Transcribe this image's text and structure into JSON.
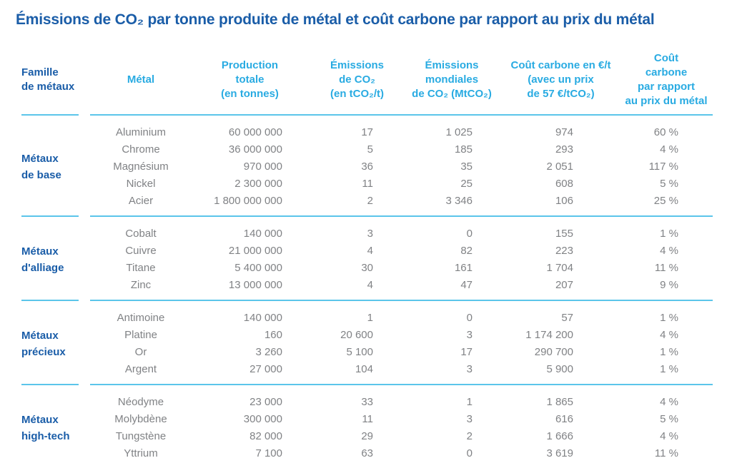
{
  "title": "Émissions de CO₂ par tonne produite de métal et coût carbone par rapport au prix du métal",
  "colors": {
    "title_blue": "#1A5DA8",
    "header_cyan": "#29ABE2",
    "separator_cyan": "#5BC5EA",
    "data_gray": "#808285"
  },
  "chart_data": {
    "type": "table",
    "title": "Émissions de CO₂ par tonne produite de métal et coût carbone par rapport au prix du métal",
    "columns": [
      "Famille\nde métaux",
      "Métal",
      "Production\ntotale\n(en tonnes)",
      "Émissions\nde CO₂\n(en tCO₂/t)",
      "Émissions\nmondiales\nde CO₂ (MtCO₂)",
      "Coût carbone en €/t\n(avec un prix\nde 57 €/tCO₂)",
      "Coût\ncarbone\npar rapport\nau prix du métal"
    ],
    "groups": [
      {
        "family": "Métaux\nde base",
        "rows": [
          [
            "Aluminium",
            "60 000 000",
            "17",
            "1 025",
            "974",
            "60 %"
          ],
          [
            "Chrome",
            "36 000 000",
            "5",
            "185",
            "293",
            "4 %"
          ],
          [
            "Magnésium",
            "970 000",
            "36",
            "35",
            "2 051",
            "117 %"
          ],
          [
            "Nickel",
            "2 300 000",
            "11",
            "25",
            "608",
            "5 %"
          ],
          [
            "Acier",
            "1 800 000 000",
            "2",
            "3 346",
            "106",
            "25 %"
          ]
        ]
      },
      {
        "family": "Métaux\nd'alliage",
        "rows": [
          [
            "Cobalt",
            "140 000",
            "3",
            "0",
            "155",
            "1 %"
          ],
          [
            "Cuivre",
            "21 000 000",
            "4",
            "82",
            "223",
            "4 %"
          ],
          [
            "Titane",
            "5 400 000",
            "30",
            "161",
            "1 704",
            "11 %"
          ],
          [
            "Zinc",
            "13 000 000",
            "4",
            "47",
            "207",
            "9 %"
          ]
        ]
      },
      {
        "family": "Métaux\nprécieux",
        "rows": [
          [
            "Antimoine",
            "140 000",
            "1",
            "0",
            "57",
            "1 %"
          ],
          [
            "Platine",
            "160",
            "20 600",
            "3",
            "1 174 200",
            "4 %"
          ],
          [
            "Or",
            "3 260",
            "5 100",
            "17",
            "290 700",
            "1 %"
          ],
          [
            "Argent",
            "27 000",
            "104",
            "3",
            "5 900",
            "1 %"
          ]
        ]
      },
      {
        "family": "Métaux\nhigh-tech",
        "rows": [
          [
            "Néodyme",
            "23 000",
            "33",
            "1",
            "1 865",
            "4 %"
          ],
          [
            "Molybdène",
            "300 000",
            "11",
            "3",
            "616",
            "5 %"
          ],
          [
            "Tungstène",
            "82 000",
            "29",
            "2",
            "1 666",
            "4 %"
          ],
          [
            "Yttrium",
            "7 100",
            "63",
            "0",
            "3 619",
            "11 %"
          ]
        ]
      }
    ]
  }
}
